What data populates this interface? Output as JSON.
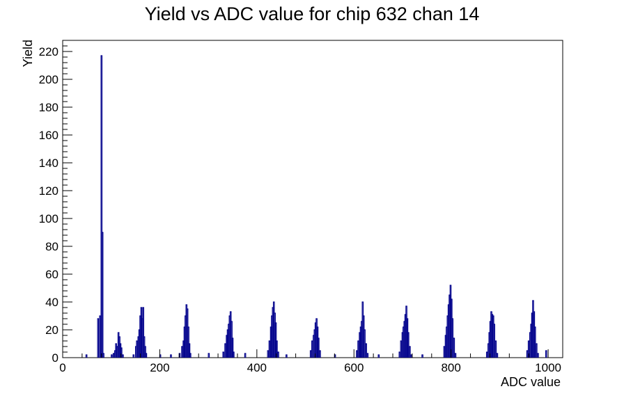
{
  "chart_data": {
    "type": "bar",
    "title": "Yield vs ADC value for chip 632 chan 14",
    "xlabel": "ADC value",
    "ylabel": "Yield",
    "xlim": [
      0,
      1030
    ],
    "ylim": [
      0,
      228
    ],
    "x_major_ticks": [
      0,
      200,
      400,
      600,
      800,
      1000
    ],
    "x_tick_labels": [
      "0",
      "200",
      "400",
      "600",
      "800",
      "1000"
    ],
    "y_major_ticks": [
      0,
      20,
      40,
      60,
      80,
      100,
      120,
      140,
      160,
      180,
      200,
      220
    ],
    "y_tick_labels": [
      "0",
      "20",
      "40",
      "60",
      "80",
      "100",
      "120",
      "140",
      "160",
      "180",
      "200",
      "220"
    ],
    "grid": false,
    "legend": false,
    "color": "#00008b",
    "series": [
      {
        "bins": [
          [
            48,
            2
          ],
          [
            72,
            28
          ],
          [
            76,
            30
          ],
          [
            79,
            217
          ],
          [
            81,
            90
          ],
          [
            83,
            3
          ],
          [
            100,
            2
          ],
          [
            104,
            3
          ],
          [
            107,
            5
          ],
          [
            109,
            10
          ],
          [
            111,
            8
          ],
          [
            114,
            18
          ],
          [
            116,
            15
          ],
          [
            118,
            10
          ],
          [
            120,
            7
          ],
          [
            123,
            2
          ],
          [
            145,
            2
          ],
          [
            150,
            8
          ],
          [
            152,
            12
          ],
          [
            155,
            15
          ],
          [
            157,
            20
          ],
          [
            159,
            30
          ],
          [
            161,
            36
          ],
          [
            163,
            28
          ],
          [
            165,
            36
          ],
          [
            167,
            15
          ],
          [
            169,
            8
          ],
          [
            171,
            3
          ],
          [
            200,
            2
          ],
          [
            222,
            2
          ],
          [
            240,
            3
          ],
          [
            245,
            8
          ],
          [
            248,
            12
          ],
          [
            250,
            22
          ],
          [
            252,
            30
          ],
          [
            254,
            38
          ],
          [
            256,
            35
          ],
          [
            258,
            22
          ],
          [
            260,
            10
          ],
          [
            262,
            3
          ],
          [
            300,
            3
          ],
          [
            330,
            4
          ],
          [
            334,
            10
          ],
          [
            337,
            16
          ],
          [
            339,
            20
          ],
          [
            341,
            24
          ],
          [
            343,
            30
          ],
          [
            345,
            33
          ],
          [
            347,
            26
          ],
          [
            349,
            14
          ],
          [
            351,
            4
          ],
          [
            375,
            3
          ],
          [
            422,
            5
          ],
          [
            425,
            12
          ],
          [
            428,
            22
          ],
          [
            430,
            30
          ],
          [
            432,
            36
          ],
          [
            434,
            40
          ],
          [
            436,
            32
          ],
          [
            438,
            25
          ],
          [
            440,
            12
          ],
          [
            443,
            4
          ],
          [
            460,
            2
          ],
          [
            510,
            5
          ],
          [
            513,
            12
          ],
          [
            516,
            16
          ],
          [
            518,
            20
          ],
          [
            520,
            25
          ],
          [
            522,
            28
          ],
          [
            524,
            22
          ],
          [
            526,
            14
          ],
          [
            529,
            5
          ],
          [
            560,
            2
          ],
          [
            605,
            5
          ],
          [
            608,
            12
          ],
          [
            611,
            18
          ],
          [
            613,
            22
          ],
          [
            615,
            26
          ],
          [
            617,
            40
          ],
          [
            619,
            30
          ],
          [
            621,
            20
          ],
          [
            624,
            10
          ],
          [
            627,
            3
          ],
          [
            650,
            2
          ],
          [
            693,
            4
          ],
          [
            696,
            12
          ],
          [
            699,
            18
          ],
          [
            701,
            22
          ],
          [
            703,
            26
          ],
          [
            705,
            31
          ],
          [
            707,
            37
          ],
          [
            709,
            28
          ],
          [
            711,
            18
          ],
          [
            714,
            8
          ],
          [
            717,
            2
          ],
          [
            740,
            2
          ],
          [
            785,
            8
          ],
          [
            788,
            16
          ],
          [
            790,
            22
          ],
          [
            792,
            30
          ],
          [
            794,
            38
          ],
          [
            796,
            45
          ],
          [
            798,
            52
          ],
          [
            800,
            42
          ],
          [
            802,
            28
          ],
          [
            805,
            14
          ],
          [
            808,
            3
          ],
          [
            873,
            4
          ],
          [
            876,
            10
          ],
          [
            878,
            18
          ],
          [
            880,
            26
          ],
          [
            882,
            33
          ],
          [
            884,
            31
          ],
          [
            886,
            30
          ],
          [
            888,
            24
          ],
          [
            891,
            12
          ],
          [
            894,
            3
          ],
          [
            956,
            5
          ],
          [
            959,
            12
          ],
          [
            962,
            18
          ],
          [
            964,
            24
          ],
          [
            966,
            32
          ],
          [
            968,
            41
          ],
          [
            970,
            33
          ],
          [
            972,
            22
          ],
          [
            975,
            10
          ],
          [
            978,
            3
          ],
          [
            995,
            5
          ]
        ]
      }
    ]
  }
}
